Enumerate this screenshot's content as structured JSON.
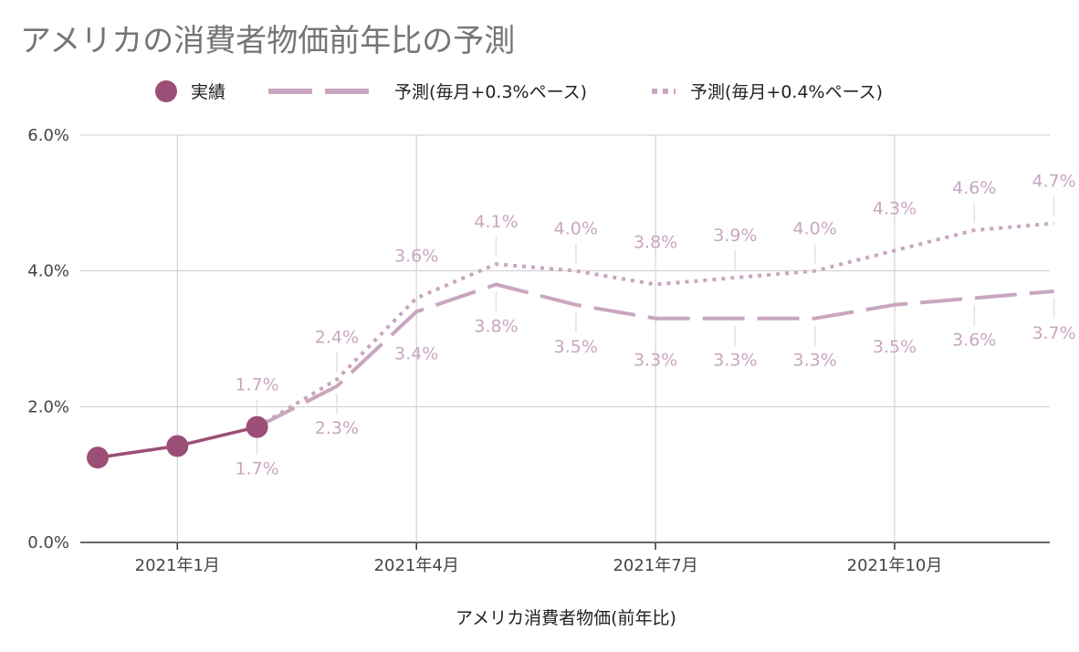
{
  "chart_data": {
    "type": "line",
    "title": "アメリカの消費者物価前年比の予測",
    "xlabel": "アメリカ消費者物価(前年比)",
    "ylabel": "",
    "y_ticks": [
      "0.0%",
      "2.0%",
      "4.0%",
      "6.0%"
    ],
    "ylim": [
      0,
      6
    ],
    "x_tick_labels": [
      {
        "label": "2021年1月",
        "month": 1
      },
      {
        "label": "2021年4月",
        "month": 4
      },
      {
        "label": "2021年7月",
        "month": 7
      },
      {
        "label": "2021年10月",
        "month": 10
      }
    ],
    "months": [
      0,
      1,
      2,
      3,
      4,
      5,
      6,
      7,
      8,
      9,
      10,
      11,
      12
    ],
    "grid": true,
    "legend_position": "top",
    "series": [
      {
        "name": "実績",
        "style": "solid-markers",
        "color": "#9b4f77",
        "points": [
          [
            0,
            1.25
          ],
          [
            1,
            1.42
          ],
          [
            2,
            1.7
          ]
        ],
        "labels": []
      },
      {
        "name": "予測(毎月+0.3%ペース)",
        "style": "dashed",
        "color": "#c9a6bf",
        "points": [
          [
            2,
            1.7
          ],
          [
            3,
            2.3
          ],
          [
            4,
            3.4
          ],
          [
            5,
            3.8
          ],
          [
            6,
            3.5
          ],
          [
            7,
            3.3
          ],
          [
            8,
            3.3
          ],
          [
            9,
            3.3
          ],
          [
            10,
            3.5
          ],
          [
            11,
            3.6
          ],
          [
            12,
            3.7
          ]
        ],
        "labels": [
          "1.7%",
          "2.3%",
          "3.4%",
          "3.8%",
          "3.5%",
          "3.3%",
          "3.3%",
          "3.3%",
          "3.5%",
          "3.6%",
          "3.7%"
        ]
      },
      {
        "name": "予測(毎月+0.4%ペース)",
        "style": "dotted",
        "color": "#c9a6bf",
        "points": [
          [
            2,
            1.7
          ],
          [
            3,
            2.4
          ],
          [
            4,
            3.6
          ],
          [
            5,
            4.1
          ],
          [
            6,
            4.0
          ],
          [
            7,
            3.8
          ],
          [
            8,
            3.9
          ],
          [
            9,
            4.0
          ],
          [
            10,
            4.3
          ],
          [
            11,
            4.6
          ],
          [
            12,
            4.7
          ]
        ],
        "labels": [
          "1.7%",
          "2.4%",
          "3.6%",
          "4.1%",
          "4.0%",
          "3.8%",
          "3.9%",
          "4.0%",
          "4.3%",
          "4.6%",
          "4.7%"
        ]
      }
    ]
  }
}
